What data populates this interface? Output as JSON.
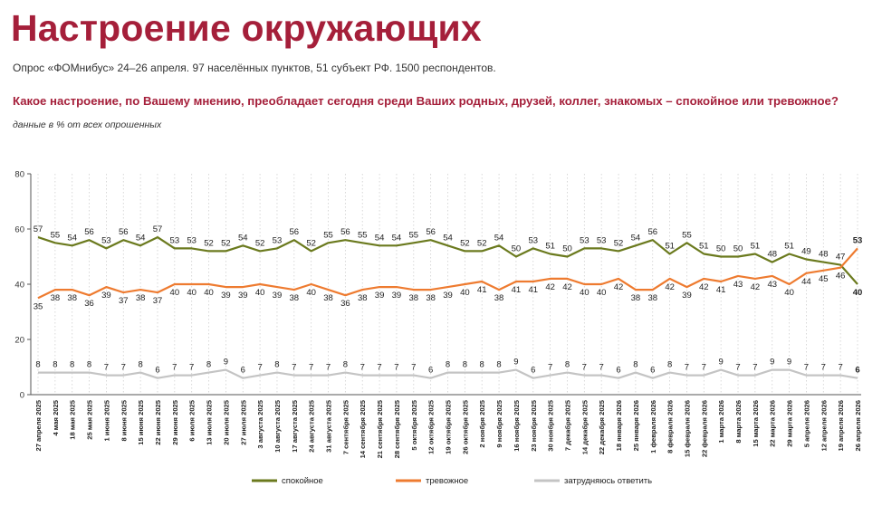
{
  "header": {
    "title": "Настроение окружающих",
    "subtitle": "Опрос «ФОМнибус» 24–26 апреля. 97 населённых пунктов, 51 субъект РФ. 1500 респондентов.",
    "question": "Какое настроение, по Вашему мнению, преобладает сегодня среди Ваших родных, друзей, коллег, знакомых – спокойное или тревожное?",
    "note": "данные в % от всех опрошенных"
  },
  "chart_data": {
    "type": "line",
    "ylim": [
      0,
      80
    ],
    "yticks": [
      0,
      20,
      40,
      60,
      80
    ],
    "grid": "vertical dotted",
    "legend_position": "bottom",
    "x": [
      "27 апреля 2025",
      "4 мая 2025",
      "18 мая 2025",
      "25 мая 2025",
      "1 июня 2025",
      "8 июня 2025",
      "15 июня 2025",
      "22 июня 2025",
      "29 июня 2025",
      "6 июля 2025",
      "13 июля 2025",
      "20 июля 2025",
      "27 июля 2025",
      "3 августа 2025",
      "10 августа 2025",
      "17 августа 2025",
      "24 августа 2025",
      "31 августа 2025",
      "7 сентября 2025",
      "14 сентября 2025",
      "21 сентября 2025",
      "28 сентября 2025",
      "5 октября 2025",
      "12 октября 2025",
      "19 октября 2025",
      "26 октября 2025",
      "2 ноября 2025",
      "9 ноября 2025",
      "16 ноября 2025",
      "23 ноября 2025",
      "30 ноября 2025",
      "7 декабря 2025",
      "14 декабря 2025",
      "22 декабря 2025",
      "18 января 2026",
      "25 января 2026",
      "1 февраля 2026",
      "8 февраля 2026",
      "15 февраля 2026",
      "22 февраля 2026",
      "1 марта 2026",
      "8 марта 2026",
      "15 марта 2026",
      "22 марта 2026",
      "29 марта 2026",
      "5 апреля 2026",
      "12 апреля 2026",
      "19 апреля 2026",
      "26 апреля 2026"
    ],
    "x_bold_last": "26 апреля 2026",
    "series": [
      {
        "name": "спокойное",
        "color": "#6b7a1e",
        "values": [
          57,
          55,
          54,
          56,
          53,
          56,
          54,
          57,
          53,
          53,
          52,
          52,
          54,
          52,
          53,
          56,
          52,
          55,
          56,
          55,
          54,
          54,
          55,
          56,
          54,
          52,
          52,
          54,
          50,
          53,
          51,
          50,
          53,
          53,
          52,
          54,
          56,
          51,
          55,
          51,
          50,
          50,
          51,
          48,
          51,
          49,
          48,
          47,
          40
        ]
      },
      {
        "name": "тревожное",
        "color": "#ee7b30",
        "values": [
          35,
          38,
          38,
          36,
          39,
          37,
          38,
          37,
          40,
          40,
          40,
          39,
          39,
          40,
          39,
          38,
          40,
          38,
          36,
          38,
          39,
          39,
          38,
          38,
          39,
          40,
          41,
          38,
          41,
          41,
          42,
          42,
          40,
          40,
          42,
          38,
          38,
          42,
          39,
          42,
          41,
          43,
          42,
          43,
          40,
          44,
          45,
          46,
          53
        ]
      },
      {
        "name": "затрудняюсь ответить",
        "color": "#c4c4c4",
        "values": [
          8,
          8,
          8,
          8,
          7,
          7,
          8,
          6,
          7,
          7,
          8,
          9,
          6,
          7,
          8,
          7,
          7,
          7,
          8,
          7,
          7,
          7,
          7,
          6,
          8,
          8,
          8,
          8,
          9,
          6,
          7,
          8,
          7,
          7,
          6,
          8,
          6,
          8,
          7,
          7,
          9,
          7,
          7,
          9,
          9,
          7,
          7,
          7,
          6
        ]
      }
    ]
  }
}
